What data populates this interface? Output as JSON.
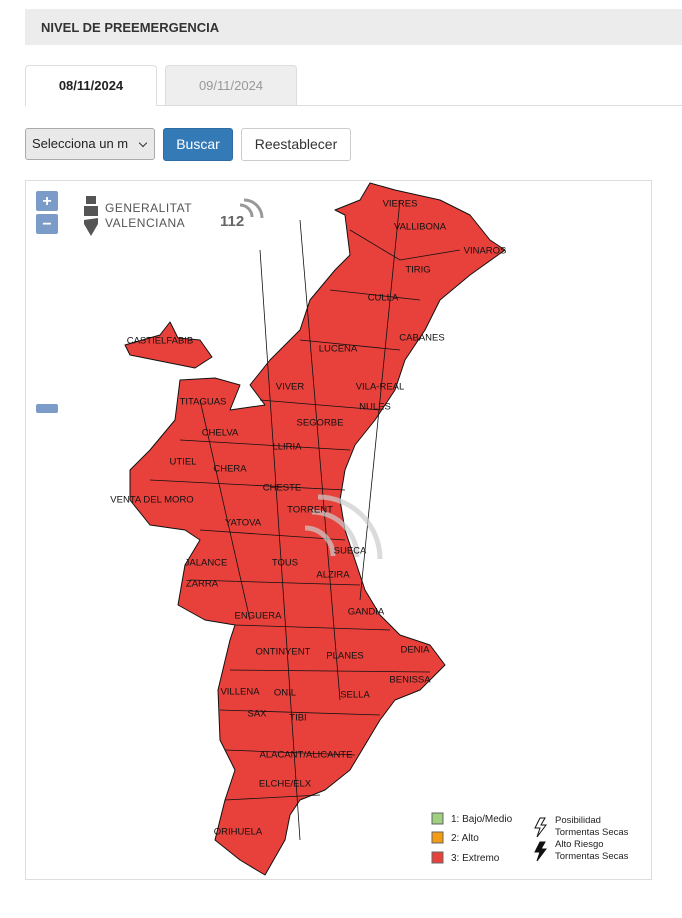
{
  "header": {
    "title": "NIVEL DE PREEMERGENCIA"
  },
  "tabs": [
    "08/11/2024",
    "09/11/2024"
  ],
  "controls": {
    "select": "Selecciona un m",
    "search": "Buscar",
    "reset": "Reestablecer"
  },
  "map": {
    "zoom_in": "+",
    "zoom_out": "−",
    "logo": [
      "GENERALITAT",
      "VALENCIANA"
    ],
    "emergency_logo": "112",
    "labels": [
      "VIERES",
      "VALLIBONA",
      "VINAROS",
      "TIRIG",
      "CULLA",
      "CASTIELFABIB",
      "CABANES",
      "LUCENA",
      "VIVER",
      "VILA-REAL",
      "TITAGUAS",
      "NULES",
      "SEGORBE",
      "CHELVA",
      "LLIRIA",
      "UTIEL",
      "CHERA",
      "CHESTE",
      "VENTA DEL MORO",
      "TORRENT",
      "YATOVA",
      "SUECA",
      "JALANCE",
      "TOUS",
      "ALZIRA",
      "ZARRA",
      "GANDIA",
      "ENGUERA",
      "ONTINYENT",
      "DENIA",
      "PLANES",
      "BENISSA",
      "VILLENA",
      "ONIL",
      "SELLA",
      "SAX",
      "TIBI",
      "ALACANT/ALICANTE",
      "ELCHE/ELX",
      "ORIHUELA"
    ],
    "legend": [
      "1: Bajo/Medio",
      "2: Alto",
      "3: Extremo"
    ],
    "storm_legend": [
      [
        "Posibilidad",
        "Tormentas Secas"
      ],
      [
        "Alto Riesgo",
        "Tormentas Secas"
      ]
    ]
  }
}
